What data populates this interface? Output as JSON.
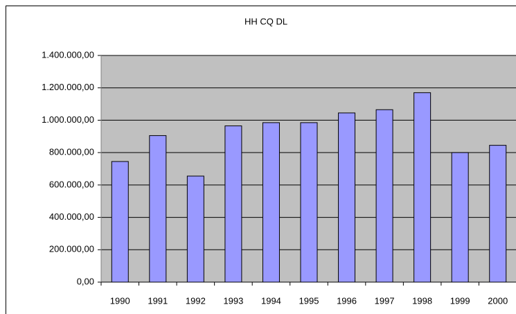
{
  "chart_data": {
    "type": "bar",
    "title": "HH CQ DL",
    "categories": [
      "1990",
      "1991",
      "1992",
      "1993",
      "1994",
      "1995",
      "1996",
      "1997",
      "1998",
      "1999",
      "2000"
    ],
    "values": [
      745000,
      905000,
      655000,
      965000,
      985000,
      985000,
      1045000,
      1065000,
      1170000,
      800000,
      845000
    ],
    "color": "#9999ff",
    "ylim": [
      0,
      1400000
    ],
    "yticks": [
      {
        "value": 0,
        "label": "0,00"
      },
      {
        "value": 200000,
        "label": "200.000,00"
      },
      {
        "value": 400000,
        "label": "400.000,00"
      },
      {
        "value": 600000,
        "label": "600.000,00"
      },
      {
        "value": 800000,
        "label": "800.000,00"
      },
      {
        "value": 1000000,
        "label": "1.000.000,00"
      },
      {
        "value": 1200000,
        "label": "1.200.000,00"
      },
      {
        "value": 1400000,
        "label": "1.400.000,00"
      }
    ],
    "grid": true
  }
}
